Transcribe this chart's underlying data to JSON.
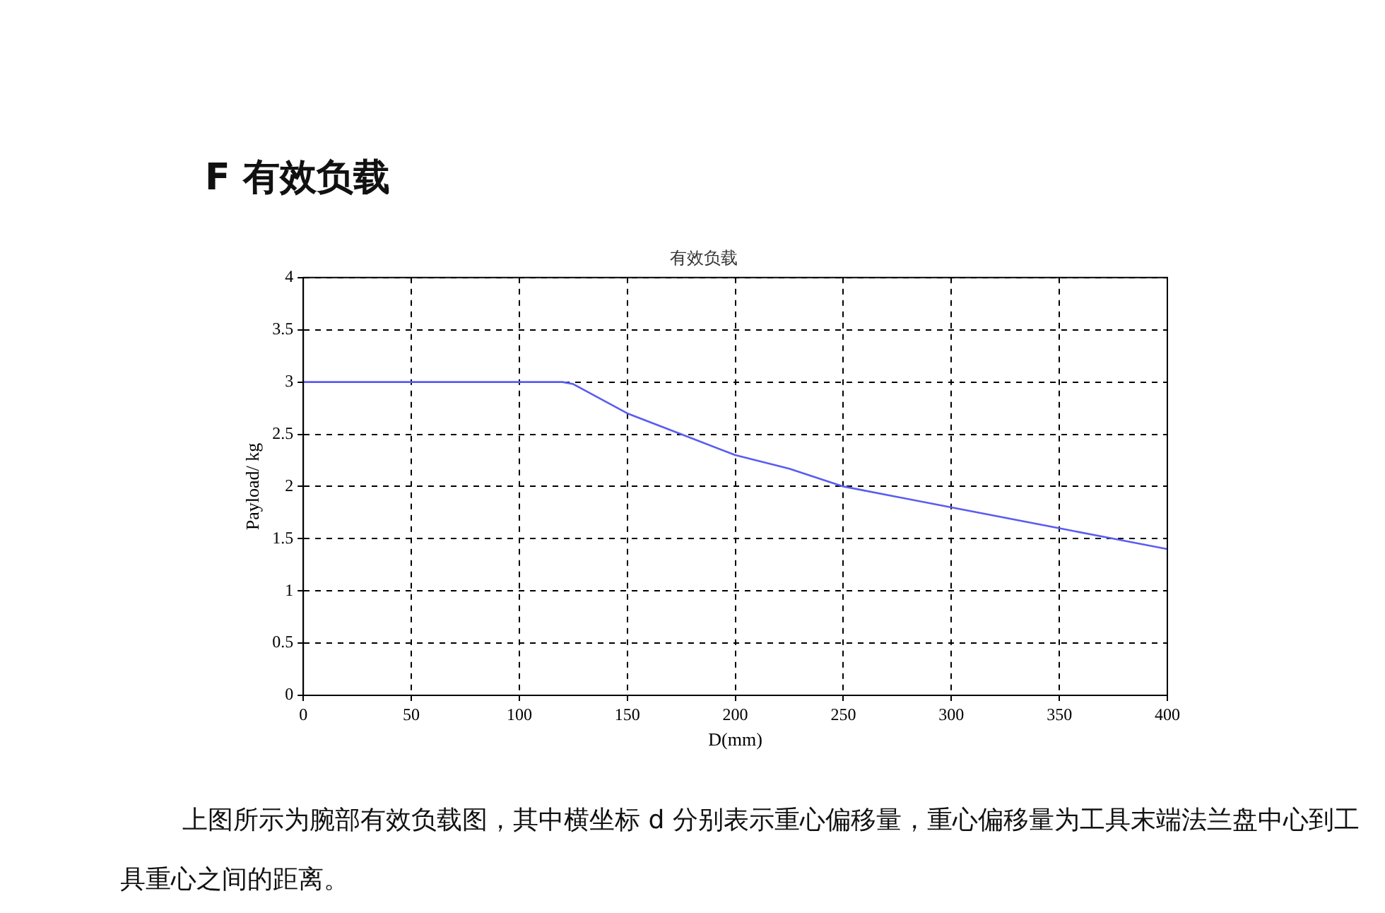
{
  "chart_data": {
    "type": "line",
    "title": "F 有效负载",
    "subtitle": "有效负载",
    "xlabel": "D(mm)",
    "ylabel": "Payload/ kg",
    "x": [
      0,
      120,
      125,
      150,
      175,
      200,
      225,
      250,
      275,
      300,
      325,
      350,
      375,
      400
    ],
    "series": [
      {
        "color": "#5a5cf0",
        "values": [
          3,
          3,
          2.98,
          2.7,
          2.5,
          2.3,
          2.17,
          2.0,
          1.9,
          1.8,
          1.7,
          1.6,
          1.5,
          1.4
        ]
      }
    ],
    "xlim": [
      0,
      400
    ],
    "xticks": [
      0,
      50,
      100,
      150,
      200,
      250,
      300,
      350,
      400
    ],
    "ylim": [
      0,
      4
    ],
    "yticks": [
      0,
      0.5,
      1,
      1.5,
      2,
      2.5,
      3,
      3.5,
      4
    ],
    "grid": true,
    "legend": false,
    "marker": "none",
    "line_style": "solid",
    "annotations": [
      "上图所示为腕部有效负载图，其中横坐标 d 分别表示重心偏移量，重心偏移量为工具末端法兰盘中心到工具重心之间的距离。"
    ]
  }
}
